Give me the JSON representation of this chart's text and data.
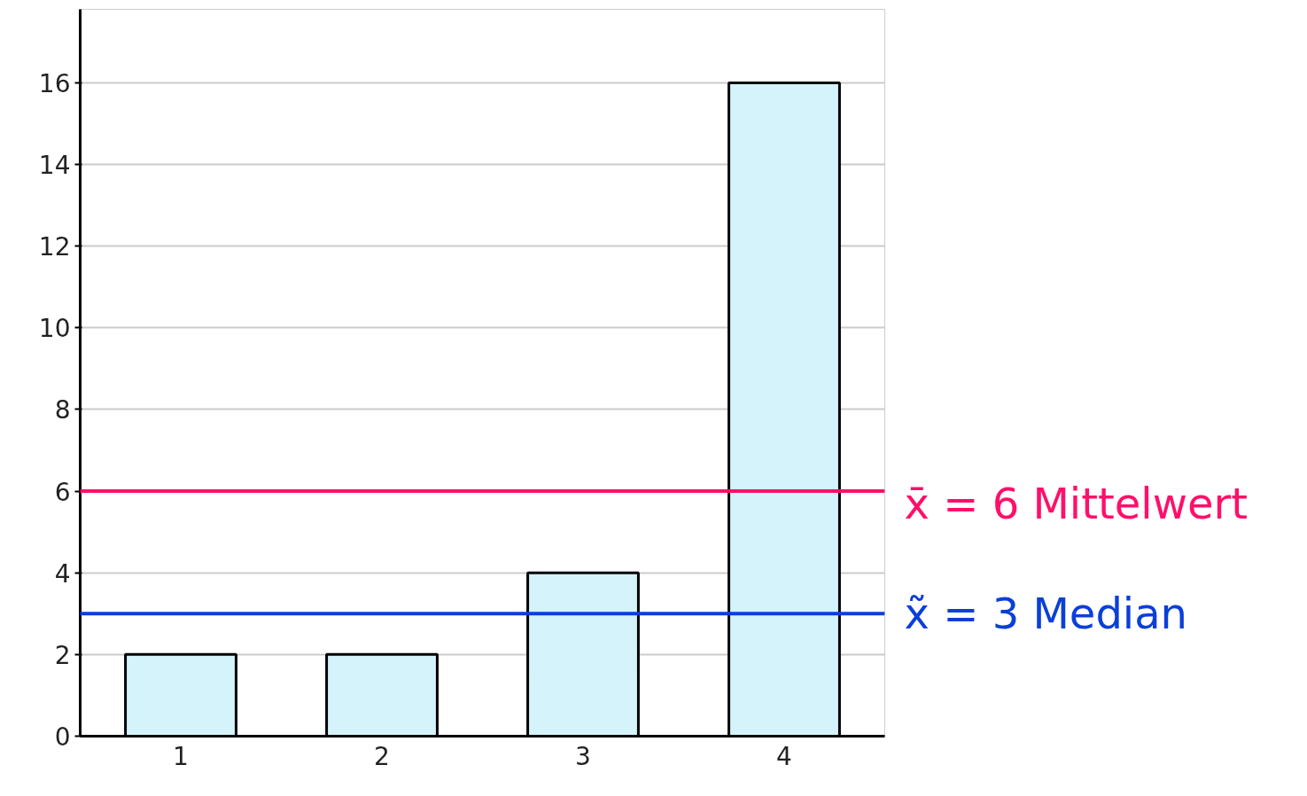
{
  "chart_data": {
    "type": "bar",
    "categories": [
      "1",
      "2",
      "3",
      "4"
    ],
    "values": [
      2,
      2,
      4,
      16
    ],
    "color": "#d4f3fb",
    "ylim": [
      0,
      17.8
    ],
    "yticks": [
      0,
      2,
      4,
      6,
      8,
      10,
      12,
      14,
      16
    ],
    "grid": "y",
    "ref_lines": [
      {
        "axis": "y",
        "value": 6,
        "label": "x̄ = 6 Mittelwert",
        "color": "#ff0f6a"
      },
      {
        "axis": "y",
        "value": 3,
        "label": "x̃ = 3 Median",
        "color": "#0a3fd8"
      }
    ]
  }
}
